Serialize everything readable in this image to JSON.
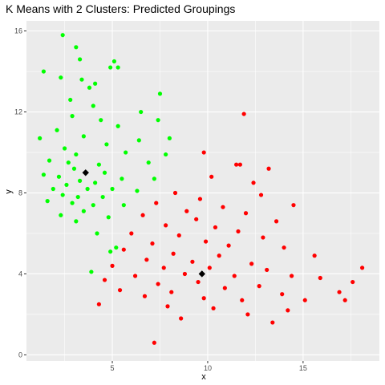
{
  "chart_data": {
    "type": "scatter",
    "title": "K Means with 2 Clusters: Predicted Groupings",
    "xlabel": "x",
    "ylabel": "y",
    "xlim": [
      0.5,
      19.0
    ],
    "ylim": [
      -0.3,
      16.5
    ],
    "x_ticks": [
      5,
      10,
      15
    ],
    "y_ticks": [
      0,
      4,
      8,
      12,
      16
    ],
    "grid": true,
    "legend": "none",
    "background_color": "#ebebeb",
    "grid_color": "#ffffff",
    "series": [
      {
        "color": "#00ff00",
        "values": [
          {
            "x": 2.4,
            "y": 15.8
          },
          {
            "x": 3.1,
            "y": 15.2
          },
          {
            "x": 3.3,
            "y": 14.6
          },
          {
            "x": 5.1,
            "y": 14.5
          },
          {
            "x": 4.9,
            "y": 14.2
          },
          {
            "x": 5.3,
            "y": 14.2
          },
          {
            "x": 1.4,
            "y": 14.0
          },
          {
            "x": 3.4,
            "y": 13.6
          },
          {
            "x": 2.3,
            "y": 13.7
          },
          {
            "x": 4.1,
            "y": 13.4
          },
          {
            "x": 3.8,
            "y": 13.2
          },
          {
            "x": 2.8,
            "y": 12.6
          },
          {
            "x": 7.5,
            "y": 12.9
          },
          {
            "x": 4.0,
            "y": 12.3
          },
          {
            "x": 6.5,
            "y": 12.0
          },
          {
            "x": 2.9,
            "y": 11.8
          },
          {
            "x": 4.4,
            "y": 11.6
          },
          {
            "x": 7.4,
            "y": 11.6
          },
          {
            "x": 5.3,
            "y": 11.3
          },
          {
            "x": 2.1,
            "y": 11.1
          },
          {
            "x": 1.2,
            "y": 10.7
          },
          {
            "x": 3.5,
            "y": 10.8
          },
          {
            "x": 6.4,
            "y": 10.6
          },
          {
            "x": 8.0,
            "y": 10.7
          },
          {
            "x": 4.7,
            "y": 10.4
          },
          {
            "x": 2.5,
            "y": 10.2
          },
          {
            "x": 3.1,
            "y": 9.9
          },
          {
            "x": 5.7,
            "y": 10.0
          },
          {
            "x": 7.8,
            "y": 9.9
          },
          {
            "x": 1.7,
            "y": 9.6
          },
          {
            "x": 2.7,
            "y": 9.5
          },
          {
            "x": 4.3,
            "y": 9.4
          },
          {
            "x": 6.9,
            "y": 9.5
          },
          {
            "x": 3.0,
            "y": 9.2
          },
          {
            "x": 4.6,
            "y": 9.0
          },
          {
            "x": 1.4,
            "y": 8.9
          },
          {
            "x": 2.2,
            "y": 8.8
          },
          {
            "x": 5.5,
            "y": 8.7
          },
          {
            "x": 7.2,
            "y": 8.7
          },
          {
            "x": 3.3,
            "y": 8.6
          },
          {
            "x": 4.1,
            "y": 8.5
          },
          {
            "x": 2.6,
            "y": 8.4
          },
          {
            "x": 1.9,
            "y": 8.2
          },
          {
            "x": 3.7,
            "y": 8.2
          },
          {
            "x": 5.0,
            "y": 8.2
          },
          {
            "x": 6.3,
            "y": 8.1
          },
          {
            "x": 2.4,
            "y": 7.9
          },
          {
            "x": 3.2,
            "y": 7.8
          },
          {
            "x": 4.5,
            "y": 7.8
          },
          {
            "x": 1.6,
            "y": 7.6
          },
          {
            "x": 2.9,
            "y": 7.5
          },
          {
            "x": 4.0,
            "y": 7.4
          },
          {
            "x": 5.6,
            "y": 7.4
          },
          {
            "x": 3.5,
            "y": 7.1
          },
          {
            "x": 2.3,
            "y": 6.9
          },
          {
            "x": 4.8,
            "y": 6.8
          },
          {
            "x": 3.1,
            "y": 6.6
          },
          {
            "x": 4.2,
            "y": 6.0
          },
          {
            "x": 5.2,
            "y": 5.3
          },
          {
            "x": 4.9,
            "y": 5.1
          },
          {
            "x": 3.9,
            "y": 4.1
          }
        ]
      },
      {
        "color": "#ff0000",
        "values": [
          {
            "x": 11.9,
            "y": 11.9
          },
          {
            "x": 9.8,
            "y": 10.0
          },
          {
            "x": 11.5,
            "y": 9.4
          },
          {
            "x": 11.7,
            "y": 9.4
          },
          {
            "x": 13.2,
            "y": 9.2
          },
          {
            "x": 10.2,
            "y": 8.8
          },
          {
            "x": 12.4,
            "y": 8.5
          },
          {
            "x": 8.3,
            "y": 8.0
          },
          {
            "x": 12.8,
            "y": 7.9
          },
          {
            "x": 9.6,
            "y": 7.7
          },
          {
            "x": 14.5,
            "y": 7.4
          },
          {
            "x": 7.3,
            "y": 7.5
          },
          {
            "x": 10.8,
            "y": 7.3
          },
          {
            "x": 8.9,
            "y": 7.1
          },
          {
            "x": 12.0,
            "y": 7.0
          },
          {
            "x": 6.6,
            "y": 6.9
          },
          {
            "x": 9.4,
            "y": 6.7
          },
          {
            "x": 13.6,
            "y": 6.6
          },
          {
            "x": 7.8,
            "y": 6.4
          },
          {
            "x": 10.4,
            "y": 6.3
          },
          {
            "x": 11.6,
            "y": 6.1
          },
          {
            "x": 6.0,
            "y": 6.0
          },
          {
            "x": 8.5,
            "y": 5.9
          },
          {
            "x": 12.9,
            "y": 5.8
          },
          {
            "x": 9.9,
            "y": 5.6
          },
          {
            "x": 7.1,
            "y": 5.5
          },
          {
            "x": 11.1,
            "y": 5.4
          },
          {
            "x": 14.0,
            "y": 5.3
          },
          {
            "x": 5.6,
            "y": 5.2
          },
          {
            "x": 8.2,
            "y": 5.0
          },
          {
            "x": 10.6,
            "y": 4.9
          },
          {
            "x": 15.6,
            "y": 4.9
          },
          {
            "x": 6.8,
            "y": 4.7
          },
          {
            "x": 9.2,
            "y": 4.6
          },
          {
            "x": 12.3,
            "y": 4.5
          },
          {
            "x": 5.0,
            "y": 4.4
          },
          {
            "x": 7.7,
            "y": 4.3
          },
          {
            "x": 10.1,
            "y": 4.3
          },
          {
            "x": 13.1,
            "y": 4.2
          },
          {
            "x": 18.1,
            "y": 4.3
          },
          {
            "x": 8.8,
            "y": 4.0
          },
          {
            "x": 11.4,
            "y": 3.9
          },
          {
            "x": 6.2,
            "y": 3.9
          },
          {
            "x": 14.4,
            "y": 3.9
          },
          {
            "x": 15.9,
            "y": 3.8
          },
          {
            "x": 4.6,
            "y": 3.7
          },
          {
            "x": 9.5,
            "y": 3.6
          },
          {
            "x": 7.4,
            "y": 3.5
          },
          {
            "x": 17.6,
            "y": 3.6
          },
          {
            "x": 12.7,
            "y": 3.4
          },
          {
            "x": 10.9,
            "y": 3.3
          },
          {
            "x": 5.4,
            "y": 3.2
          },
          {
            "x": 8.1,
            "y": 3.1
          },
          {
            "x": 13.9,
            "y": 3.0
          },
          {
            "x": 16.9,
            "y": 3.1
          },
          {
            "x": 6.7,
            "y": 2.9
          },
          {
            "x": 9.8,
            "y": 2.8
          },
          {
            "x": 11.8,
            "y": 2.7
          },
          {
            "x": 15.1,
            "y": 2.7
          },
          {
            "x": 17.2,
            "y": 2.7
          },
          {
            "x": 4.3,
            "y": 2.5
          },
          {
            "x": 7.9,
            "y": 2.4
          },
          {
            "x": 10.3,
            "y": 2.3
          },
          {
            "x": 14.2,
            "y": 2.2
          },
          {
            "x": 12.1,
            "y": 2.0
          },
          {
            "x": 8.6,
            "y": 1.8
          },
          {
            "x": 13.4,
            "y": 1.6
          },
          {
            "x": 7.2,
            "y": 0.6
          }
        ]
      },
      {
        "color": "#000000",
        "values": [
          {
            "x": 3.6,
            "y": 9.0
          },
          {
            "x": 9.7,
            "y": 4.0
          }
        ]
      }
    ]
  }
}
